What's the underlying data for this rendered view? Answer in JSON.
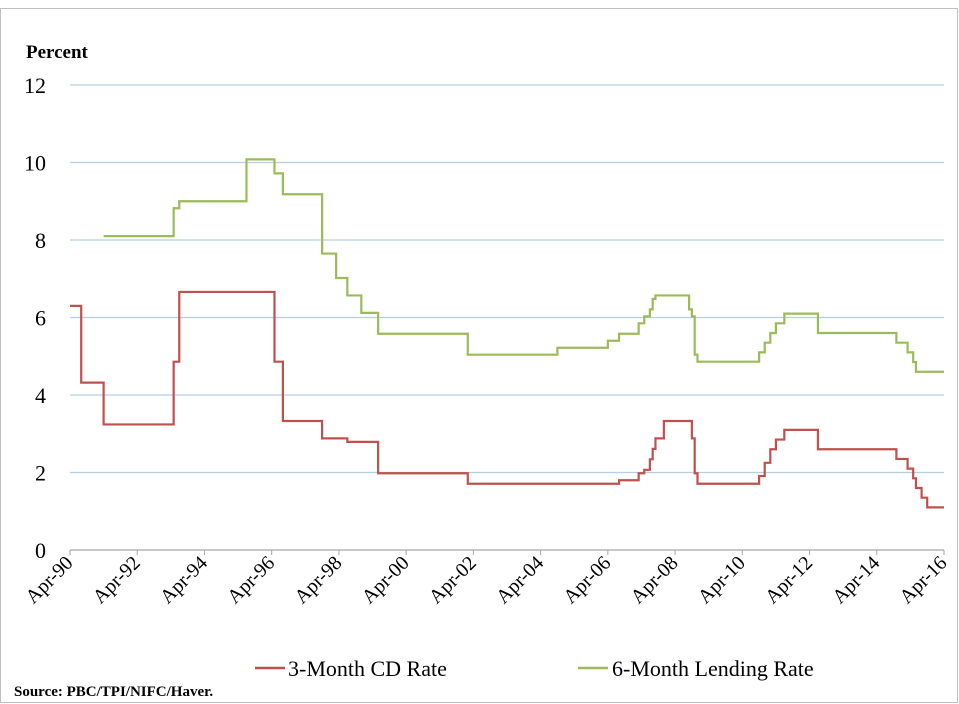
{
  "chart_data": {
    "type": "line",
    "step": true,
    "y_axis_label": "Percent",
    "source": "Source:  PBC/TPI/NIFC/Haver.",
    "ylim": [
      0,
      12
    ],
    "yticks": [
      0,
      2,
      4,
      6,
      8,
      10,
      12
    ],
    "grid": true,
    "xlim": [
      "1990-04",
      "2016-04"
    ],
    "xticks": [
      {
        "value": "1990-04",
        "label": "Apr-90"
      },
      {
        "value": "1992-04",
        "label": "Apr-92"
      },
      {
        "value": "1994-04",
        "label": "Apr-94"
      },
      {
        "value": "1996-04",
        "label": "Apr-96"
      },
      {
        "value": "1998-04",
        "label": "Apr-98"
      },
      {
        "value": "2000-04",
        "label": "Apr-00"
      },
      {
        "value": "2002-04",
        "label": "Apr-02"
      },
      {
        "value": "2004-04",
        "label": "Apr-04"
      },
      {
        "value": "2006-04",
        "label": "Apr-06"
      },
      {
        "value": "2008-04",
        "label": "Apr-08"
      },
      {
        "value": "2010-04",
        "label": "Apr-10"
      },
      {
        "value": "2012-04",
        "label": "Apr-12"
      },
      {
        "value": "2014-04",
        "label": "Apr-14"
      },
      {
        "value": "2016-04",
        "label": "Apr-16"
      }
    ],
    "legend": "bottom",
    "series": [
      {
        "name": "3-Month CD Rate",
        "color": "#c0504d",
        "x": [
          "1990-04",
          "1990-08",
          "1991-04",
          "1993-05",
          "1993-07",
          "1996-05",
          "1996-08",
          "1997-10",
          "1998-07",
          "1999-06",
          "2002-02",
          "2006-08",
          "2007-03",
          "2007-05",
          "2007-07",
          "2007-08",
          "2007-09",
          "2007-12",
          "2008-10",
          "2008-11",
          "2008-12",
          "2010-10",
          "2010-12",
          "2011-02",
          "2011-04",
          "2011-07",
          "2012-07",
          "2014-11",
          "2015-03",
          "2015-05",
          "2015-06",
          "2015-08",
          "2015-10",
          "2016-04"
        ],
        "values": [
          6.3,
          4.32,
          3.24,
          4.86,
          6.66,
          4.86,
          3.33,
          2.88,
          2.79,
          1.98,
          1.71,
          1.8,
          1.98,
          2.07,
          2.34,
          2.61,
          2.88,
          3.33,
          2.88,
          1.98,
          1.71,
          1.91,
          2.25,
          2.6,
          2.85,
          3.1,
          2.6,
          2.35,
          2.1,
          1.85,
          1.6,
          1.35,
          1.1,
          1.1
        ]
      },
      {
        "name": "6-Month Lending Rate",
        "color": "#9bbb59",
        "x": [
          "1991-04",
          "1993-05",
          "1993-07",
          "1995-07",
          "1996-05",
          "1996-08",
          "1997-10",
          "1998-03",
          "1998-07",
          "1998-12",
          "1999-06",
          "2002-02",
          "2004-10",
          "2006-04",
          "2006-08",
          "2007-03",
          "2007-05",
          "2007-07",
          "2007-08",
          "2007-09",
          "2008-09",
          "2008-10",
          "2008-11",
          "2008-12",
          "2010-10",
          "2010-12",
          "2011-02",
          "2011-04",
          "2011-07",
          "2012-07",
          "2014-11",
          "2015-03",
          "2015-05",
          "2015-06",
          "2016-04"
        ],
        "values": [
          8.1,
          8.82,
          9.0,
          10.08,
          9.72,
          9.18,
          7.65,
          7.02,
          6.57,
          6.12,
          5.58,
          5.04,
          5.22,
          5.4,
          5.58,
          5.85,
          6.03,
          6.21,
          6.48,
          6.57,
          6.21,
          6.03,
          5.04,
          4.86,
          5.1,
          5.35,
          5.6,
          5.85,
          6.1,
          5.6,
          5.35,
          5.1,
          4.85,
          4.6,
          4.6
        ]
      }
    ]
  }
}
